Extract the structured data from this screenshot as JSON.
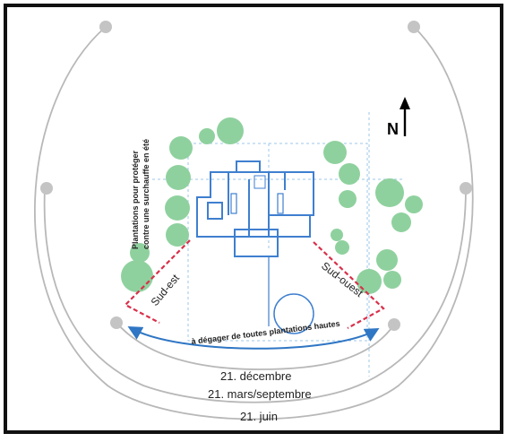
{
  "sun_paths": {
    "december": "21. décembre",
    "equinox": "21. mars/septembre",
    "june": "21. juin"
  },
  "orientations": {
    "southeast": "Sud-est",
    "southwest": "Sud-ouest"
  },
  "north_label": "N",
  "annotations": {
    "clear_zone": "à dégager de toutes plantations hautes",
    "planting_line1": "Plantations pour protéger",
    "planting_line2": "contre une surchauffe en été"
  },
  "colors": {
    "frame": "#111111",
    "arc": "#b8b8b8",
    "tree": "#8fd19e",
    "plan": "#3f7fcf",
    "guide": "#9cc7ea",
    "orientation_line": "#d9304a",
    "clear_arrow": "#2f76c4"
  }
}
